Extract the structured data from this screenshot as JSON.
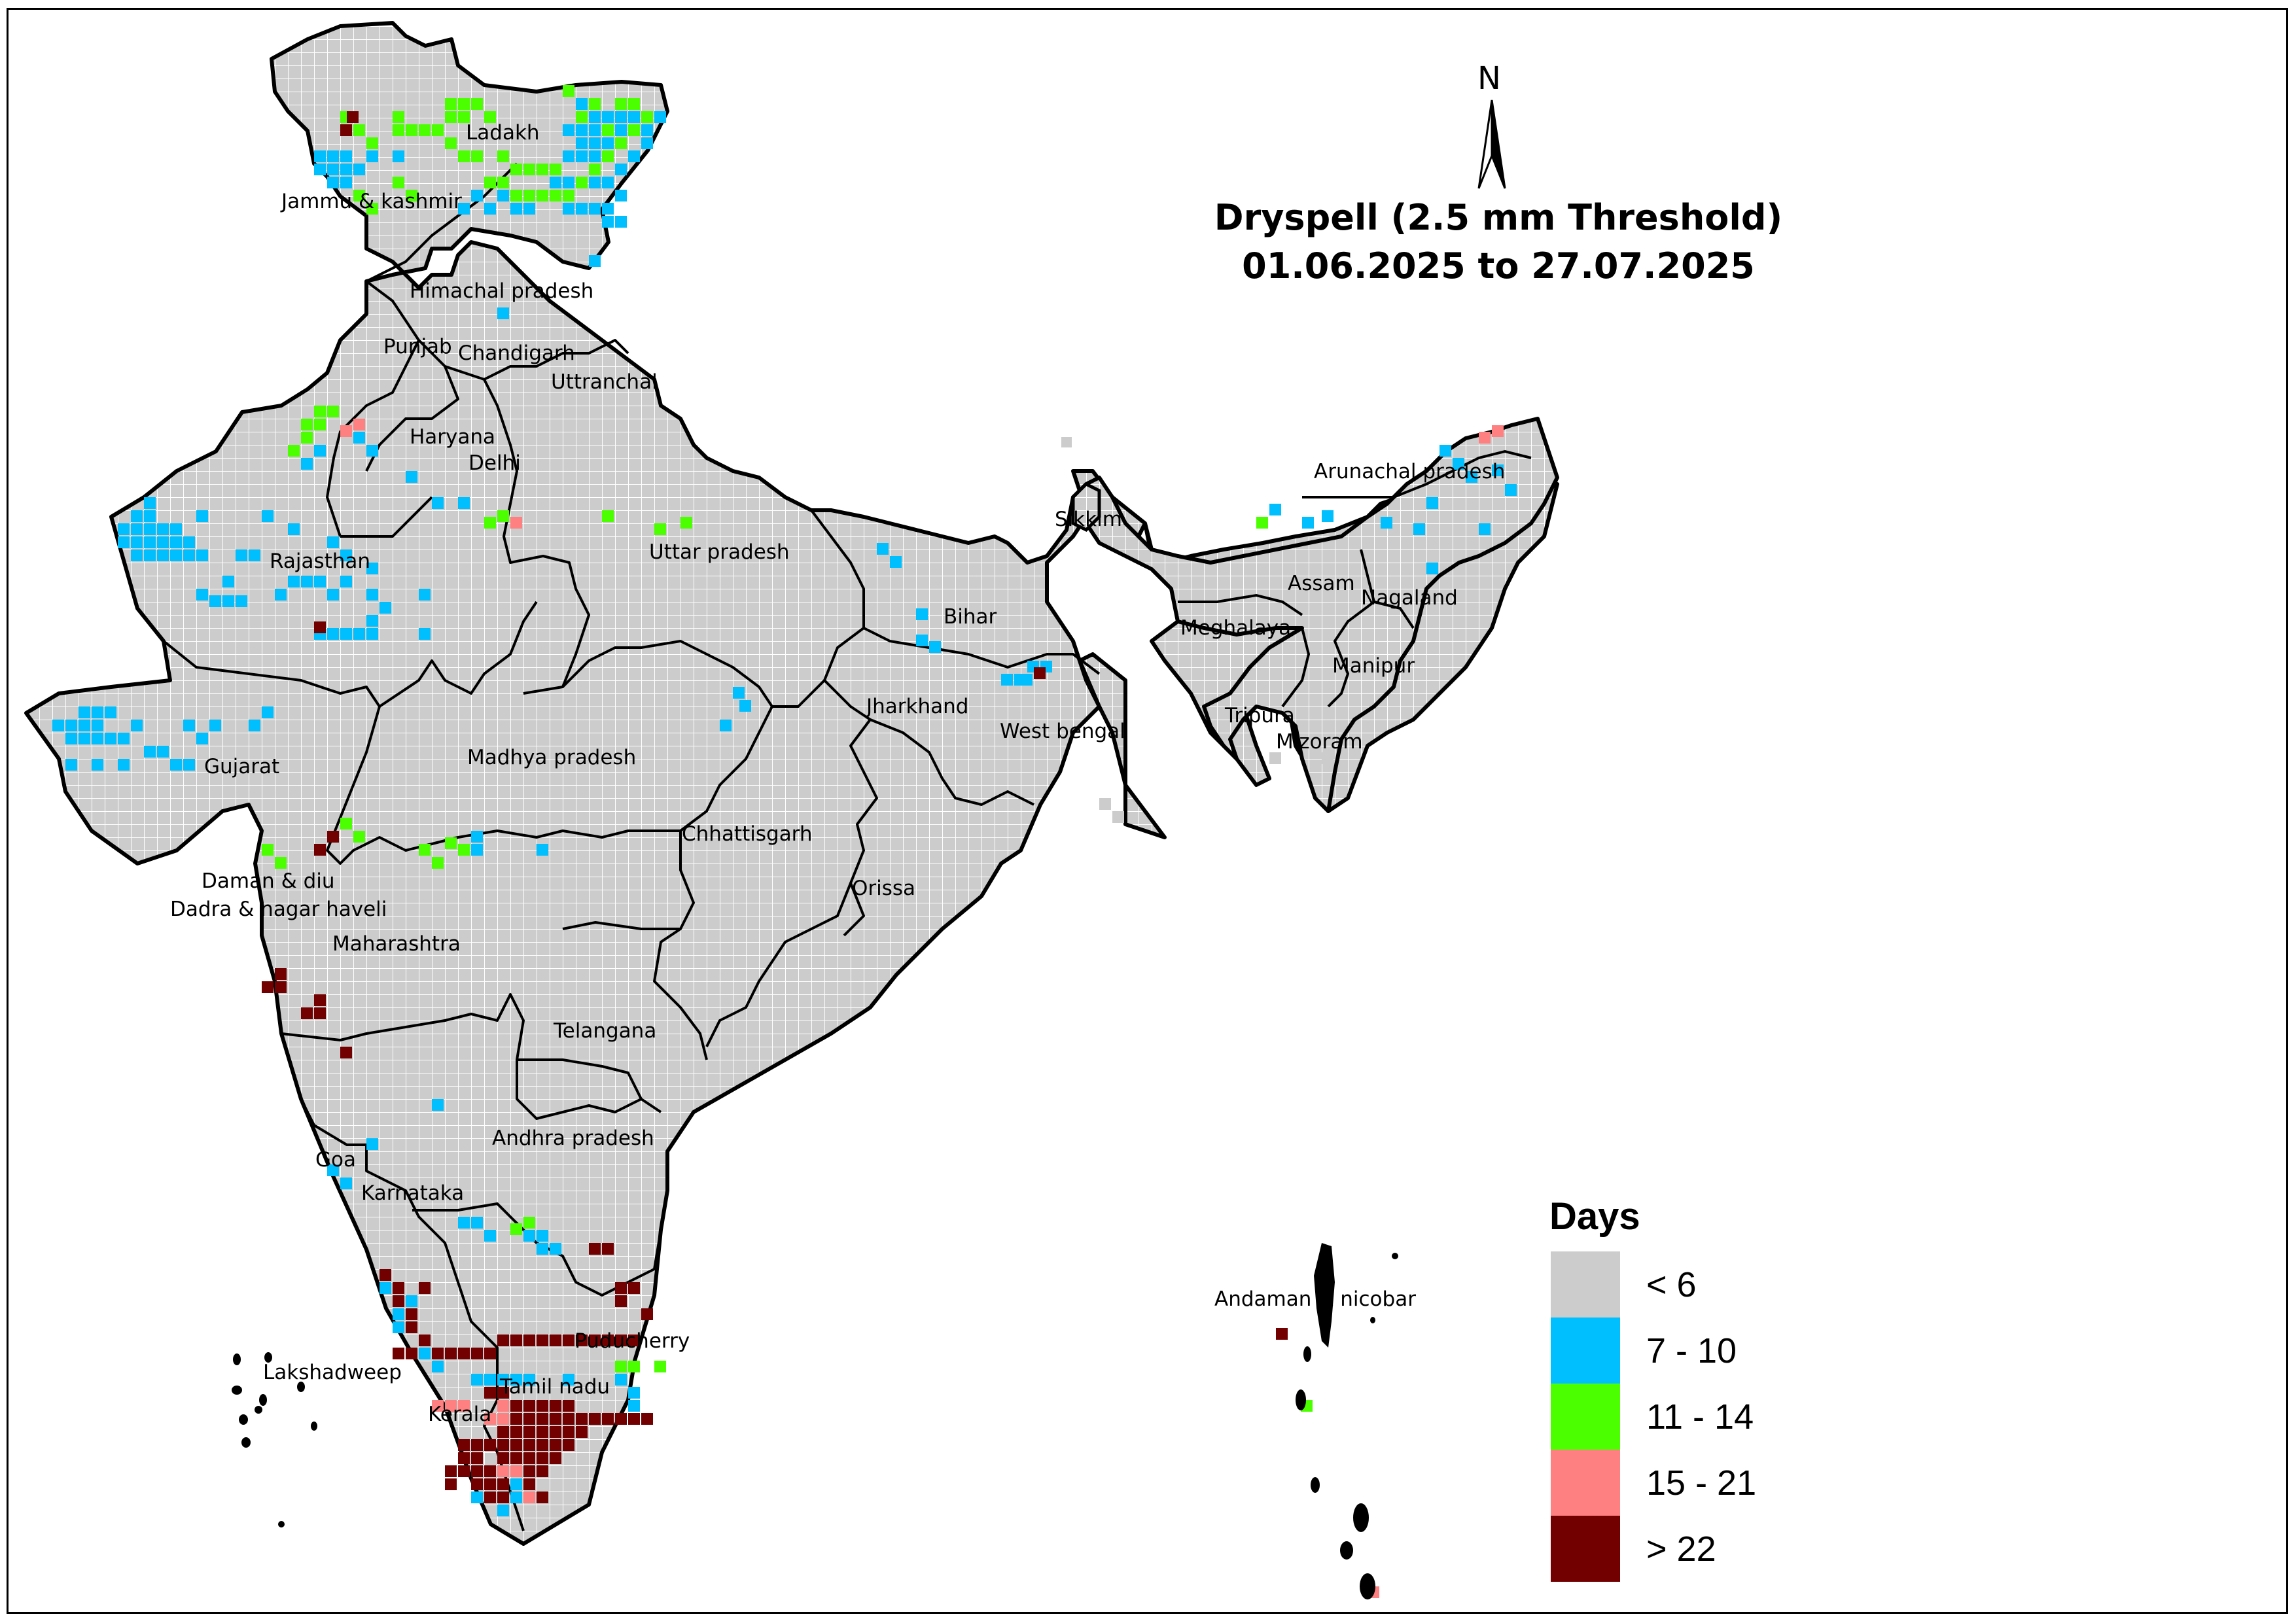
{
  "title": {
    "line1": "Dryspell (2.5 mm Threshold)",
    "line2": "01.06.2025 to 27.07.2025"
  },
  "north_arrow": {
    "letter": "N",
    "icon": "north-arrow-icon"
  },
  "legend": {
    "title": "Days",
    "items": [
      {
        "label": "< 6",
        "color": "#cccccc"
      },
      {
        "label": "7 - 10",
        "color": "#00bfff"
      },
      {
        "label": "11 - 14",
        "color": "#4cff00"
      },
      {
        "label": "15 - 21",
        "color": "#ff8080"
      },
      {
        "label": "> 22",
        "color": "#730000"
      }
    ]
  },
  "map": {
    "base_color": "#cccccc",
    "border_color": "#000000",
    "grid_line_color": "#ffffff",
    "labels": [
      "Ladakh",
      "Jammu & kashmir",
      "Himachal pradesh",
      "Punjab",
      "Chandigarh",
      "Uttranchal",
      "Haryana",
      "Delhi",
      "Rajasthan",
      "Uttar pradesh",
      "Sikkim",
      "Arunachal pradesh",
      "Assam",
      "Nagaland",
      "Meghalaya",
      "Bihar",
      "Manipur",
      "Jharkhand",
      "West bengal",
      "Tripura",
      "Mizoram",
      "Gujarat",
      "Madhya pradesh",
      "Chhattisgarh",
      "Orissa",
      "Daman & diu",
      "Dadra & nagar haveli",
      "Maharashtra",
      "Telangana",
      "Andhra pradesh",
      "Goa",
      "Karnataka",
      "Puducherry",
      "Lakshadweep",
      "Tamil nadu",
      "Kerala",
      "Andaman & nicobar"
    ]
  }
}
